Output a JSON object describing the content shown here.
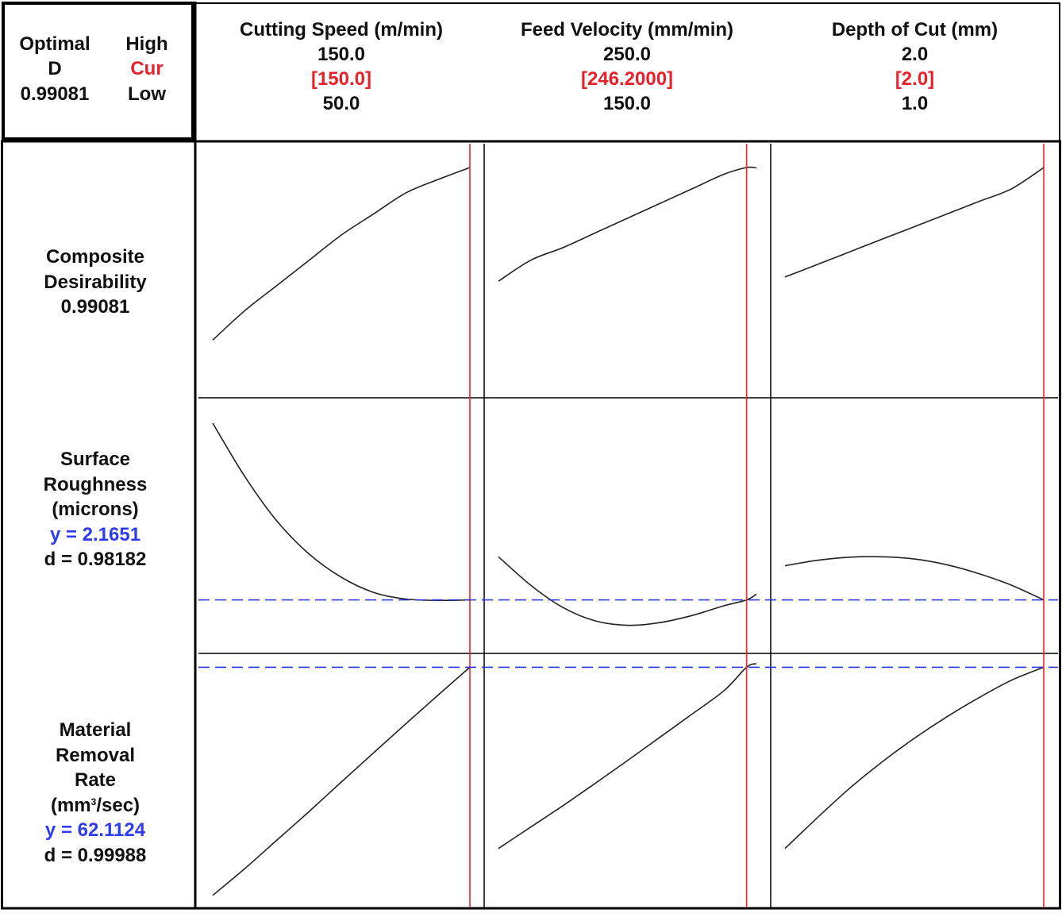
{
  "optimal_box": {
    "optimal_label": "Optimal",
    "d_label": "D",
    "d_value": "0.99081",
    "high_label": "High",
    "cur_label": "Cur",
    "low_label": "Low"
  },
  "factors": [
    {
      "name": "Cutting Speed (m/min)",
      "high": "150.0",
      "current": "[150.0]",
      "low": "50.0"
    },
    {
      "name": "Feed Velocity (mm/min)",
      "high": "250.0",
      "current": "[246.2000]",
      "low": "150.0"
    },
    {
      "name": "Depth of Cut (mm)",
      "high": "2.0",
      "current": "[2.0]",
      "low": "1.0"
    }
  ],
  "responses": [
    {
      "label_lines": [
        "Composite",
        "Desirability",
        "0.99081"
      ]
    },
    {
      "label_lines": [
        "Surface",
        "Roughness",
        "(microns)"
      ],
      "y_text": "y = 2.1651",
      "d_text": "d = 0.98182"
    },
    {
      "label_lines": [
        "Material",
        "Removal",
        "Rate"
      ],
      "unit_pre": "(mm",
      "unit_sup": "3",
      "unit_post": "/sec)",
      "y_text": "y = 62.1124",
      "d_text": "d = 0.99988"
    }
  ],
  "colors": {
    "current_line": "#ff2020",
    "reference_line": "#2233e8",
    "curve": "#222222",
    "grid": "#000000",
    "label_red": "#e8202a",
    "label_blue": "#2e3cf0"
  },
  "chart_data": {
    "type": "line",
    "title": "",
    "x_factors": [
      "Cutting Speed (m/min)",
      "Feed Velocity (mm/min)",
      "Depth of Cut (mm)"
    ],
    "x_ranges": [
      [
        50.0,
        150.0
      ],
      [
        150.0,
        250.0
      ],
      [
        1.0,
        2.0
      ]
    ],
    "current_settings": [
      150.0,
      246.2,
      2.0
    ],
    "panels": [
      [
        {
          "x": [
            50,
            62.5,
            75,
            87.5,
            100,
            112.5,
            125,
            137.5,
            150
          ],
          "y": [
            0.58,
            0.65,
            0.71,
            0.77,
            0.83,
            0.88,
            0.93,
            0.962,
            0.99081
          ]
        },
        {
          "x": [
            50,
            62.5,
            75,
            87.5,
            100,
            112.5,
            125,
            137.5,
            150
          ],
          "y": [
            4.15,
            3.55,
            3.05,
            2.68,
            2.42,
            2.25,
            2.175,
            2.16,
            2.1651
          ]
        },
        {
          "x": [
            50,
            62.5,
            75,
            87.5,
            100,
            112.5,
            125,
            137.5,
            150
          ],
          "y": [
            11.0,
            17.0,
            23.4,
            29.8,
            36.4,
            42.9,
            49.4,
            55.8,
            62.1124
          ]
        }
      ],
      [
        {
          "x": [
            150,
            162.5,
            175,
            187.5,
            200,
            212.5,
            225,
            237.5,
            246.2,
            250
          ],
          "y": [
            0.72,
            0.77,
            0.8,
            0.835,
            0.87,
            0.905,
            0.94,
            0.975,
            0.99081,
            0.99
          ]
        },
        {
          "x": [
            150,
            162.5,
            175,
            187.5,
            200,
            212.5,
            225,
            237.5,
            246.2,
            250
          ],
          "y": [
            2.65,
            2.33,
            2.08,
            1.93,
            1.88,
            1.91,
            1.99,
            2.1,
            2.1651,
            2.23
          ]
        },
        {
          "x": [
            150,
            162.5,
            175,
            187.5,
            200,
            212.5,
            225,
            237.5,
            246.2,
            250
          ],
          "y": [
            21.5,
            26.3,
            31.1,
            36.1,
            41.2,
            46.4,
            51.6,
            56.9,
            62.1124,
            62.9
          ]
        }
      ],
      [
        {
          "x": [
            1.0,
            1.125,
            1.25,
            1.375,
            1.5,
            1.625,
            1.75,
            1.875,
            2.0
          ],
          "y": [
            0.73,
            0.76,
            0.79,
            0.82,
            0.85,
            0.88,
            0.91,
            0.94,
            0.99081
          ]
        },
        {
          "x": [
            1.0,
            1.125,
            1.25,
            1.375,
            1.5,
            1.625,
            1.75,
            1.875,
            2.0
          ],
          "y": [
            2.55,
            2.61,
            2.645,
            2.65,
            2.625,
            2.56,
            2.46,
            2.33,
            2.1651
          ]
        },
        {
          "x": [
            1.0,
            1.125,
            1.25,
            1.375,
            1.5,
            1.625,
            1.75,
            1.875,
            2.0
          ],
          "y": [
            21.5,
            28.4,
            35.0,
            40.9,
            46.2,
            51.0,
            55.3,
            59.2,
            62.1124
          ]
        }
      ]
    ],
    "response_ylim": [
      [
        0.45,
        1.04
      ],
      [
        1.6,
        4.4
      ],
      [
        9.0,
        64.5
      ]
    ],
    "reference_values": [
      null,
      2.1651,
      62.1124
    ],
    "grid": true,
    "legend": "none"
  }
}
